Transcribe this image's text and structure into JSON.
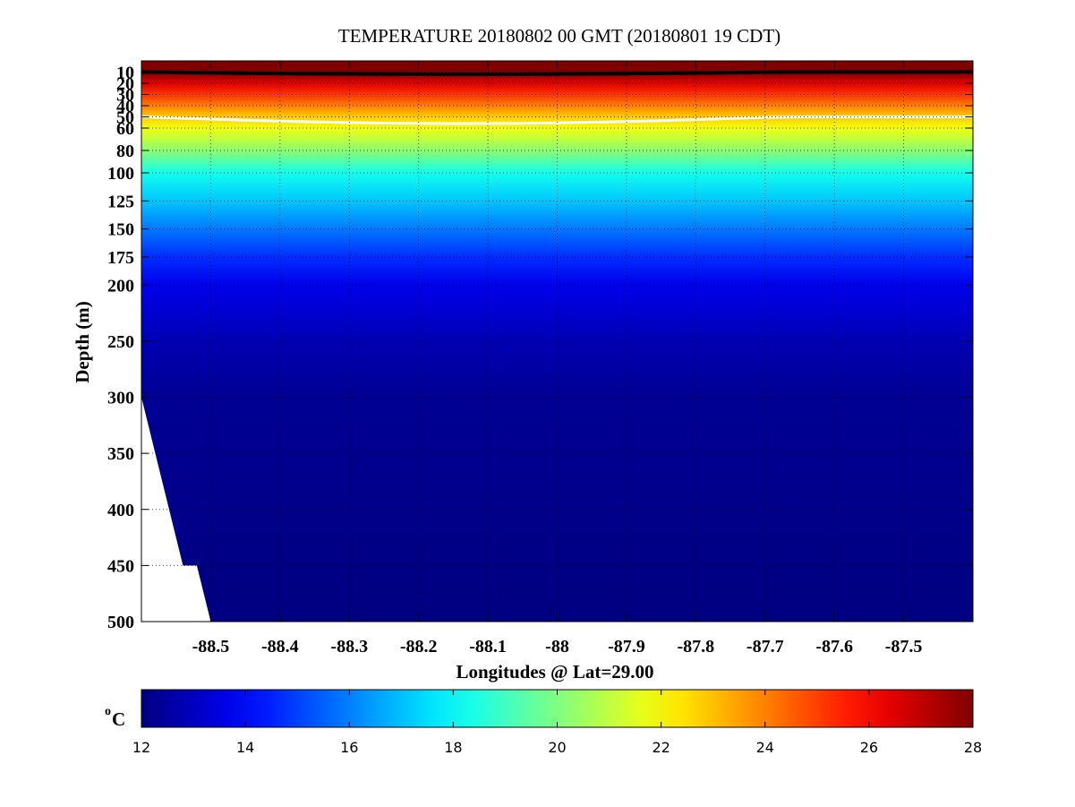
{
  "chart_data": {
    "type": "heatmap",
    "title": "TEMPERATURE 20180802 00 GMT (20180801 19 CDT)",
    "xlabel": "Longitudes @ Lat=29.00",
    "ylabel": "Depth (m)",
    "x": {
      "range": [
        -88.6,
        -87.4
      ],
      "ticks": [
        -88.5,
        -88.4,
        -88.3,
        -88.2,
        -88.1,
        -88.0,
        -87.9,
        -87.8,
        -87.7,
        -87.6,
        -87.5
      ],
      "tick_labels": [
        "-88.5",
        "-88.4",
        "-88.3",
        "-88.2",
        "-88.1",
        "-88",
        "-87.9",
        "-87.8",
        "-87.7",
        "-87.6",
        "-87.5"
      ]
    },
    "y": {
      "range": [
        0,
        500
      ],
      "reversed": true,
      "scale": "piecewise: 0-100 m stretched, 100-500 m compressed",
      "ticks": [
        10,
        20,
        30,
        40,
        50,
        60,
        80,
        100,
        125,
        150,
        175,
        200,
        250,
        300,
        350,
        400,
        450,
        500
      ],
      "tick_labels": [
        "10",
        "20",
        "30",
        "40",
        "50",
        "60",
        "80",
        "100",
        "125",
        "150",
        "175",
        "200",
        "250",
        "300",
        "350",
        "400",
        "450",
        "500"
      ]
    },
    "grid": true,
    "colorbar": {
      "label": "oC",
      "range": [
        12,
        28
      ],
      "ticks": [
        12,
        14,
        16,
        18,
        20,
        22,
        24,
        26,
        28
      ],
      "tick_labels": [
        "12",
        "14",
        "16",
        "18",
        "20",
        "22",
        "24",
        "26",
        "28"
      ],
      "colormap": "jet"
    },
    "temperature_profile": {
      "depths_m": [
        0,
        10,
        20,
        30,
        40,
        50,
        60,
        80,
        100,
        125,
        150,
        175,
        200,
        250,
        300,
        500
      ],
      "temps_C": [
        28.5,
        28.0,
        26.5,
        25.2,
        24.0,
        22.8,
        21.8,
        20.2,
        18.3,
        17.1,
        15.9,
        14.7,
        13.7,
        12.8,
        12.3,
        12.0
      ]
    },
    "contours": [
      {
        "value_C": 28,
        "depth_m_range": [
          10,
          12
        ],
        "color": "#000000"
      },
      {
        "value_C": 23,
        "depth_m_range": [
          50,
          56
        ],
        "color": "#ffffff"
      }
    ],
    "bathymetry_mask": {
      "description": "no data (seafloor) in lower-left corner",
      "points": [
        [
          -88.6,
          300
        ],
        [
          -88.54,
          450
        ],
        [
          -88.52,
          450
        ],
        [
          -88.5,
          500
        ],
        [
          -88.6,
          500
        ]
      ]
    }
  }
}
